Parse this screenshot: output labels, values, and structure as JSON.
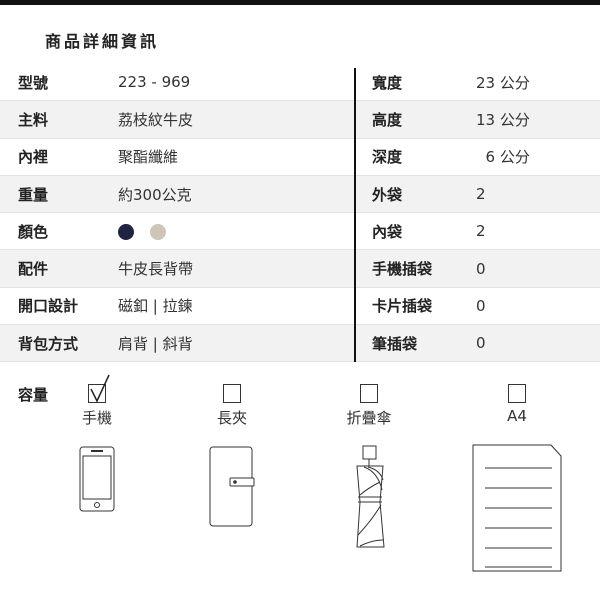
{
  "title": "商品詳細資訊",
  "rows": [
    {
      "label": "型號",
      "value": "223 - 969",
      "label2": "寬度",
      "value2": "23 公分"
    },
    {
      "label": "主料",
      "value": "荔枝紋牛皮",
      "label2": "高度",
      "value2": "13 公分"
    },
    {
      "label": "內裡",
      "value": "聚酯纖維",
      "label2": "深度",
      "value2": "  6 公分"
    },
    {
      "label": "重量",
      "value": "約300公克",
      "label2": "外袋",
      "value2": "2"
    },
    {
      "label": "顏色",
      "value": "",
      "label2": "內袋",
      "value2": "2"
    },
    {
      "label": "配件",
      "value": "牛皮長背帶",
      "label2": "手機插袋",
      "value2": "0"
    },
    {
      "label": "開口設計",
      "value": "磁釦 | 拉鍊",
      "label2": "卡片插袋",
      "value2": "0"
    },
    {
      "label": "背包方式",
      "value": "肩背 | 斜背",
      "label2": "筆插袋",
      "value2": "0"
    }
  ],
  "colors": [
    "#1f2540",
    "#cdc6b6"
  ],
  "capacity": {
    "label": "容量",
    "items": [
      {
        "label": "手機",
        "checked": true,
        "icon": "phone-icon"
      },
      {
        "label": "長夾",
        "checked": false,
        "icon": "wallet-icon"
      },
      {
        "label": "折疊傘",
        "checked": false,
        "icon": "umbrella-icon"
      },
      {
        "label": "A4",
        "checked": false,
        "icon": "document-icon"
      }
    ]
  }
}
